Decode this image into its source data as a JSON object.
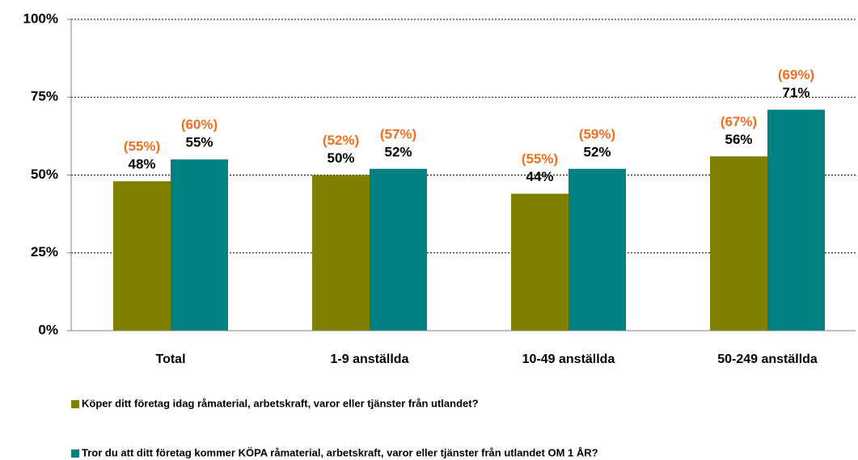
{
  "chart_data": {
    "type": "bar",
    "categories": [
      "Total",
      "1-9 anställda",
      "10-49 anställda",
      "50-249 anställda"
    ],
    "series": [
      {
        "name": "Köper ditt företag idag råmaterial, arbetskraft, varor eller tjänster från utlandet?",
        "color": "#808000",
        "values": [
          48,
          50,
          44,
          56
        ],
        "value_labels": [
          "48%",
          "50%",
          "44%",
          "56%"
        ],
        "annotation_values": [
          55,
          52,
          55,
          67
        ],
        "annotation_labels": [
          "(55%)",
          "(52%)",
          "(55%)",
          "(67%)"
        ]
      },
      {
        "name": "Tror du att ditt företag kommer KÖPA råmaterial, arbetskraft, varor eller tjänster från utlandet OM 1 ÅR?",
        "color": "#008080",
        "values": [
          55,
          52,
          52,
          71
        ],
        "value_labels": [
          "55%",
          "52%",
          "52%",
          "71%"
        ],
        "annotation_values": [
          60,
          57,
          59,
          69
        ],
        "annotation_labels": [
          "(60%)",
          "(57%)",
          "(59%)",
          "(69%)"
        ]
      }
    ],
    "annotation_color": "#f07020",
    "ylim": [
      0,
      100
    ],
    "yticks": [
      {
        "value": 0,
        "label": "0%"
      },
      {
        "value": 25,
        "label": "25%"
      },
      {
        "value": 50,
        "label": "50%"
      },
      {
        "value": 75,
        "label": "75%"
      },
      {
        "value": 100,
        "label": "100%"
      }
    ],
    "grid": true,
    "legend": "bottom"
  }
}
